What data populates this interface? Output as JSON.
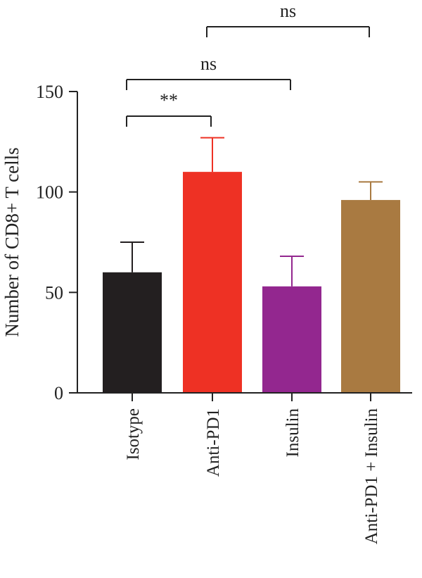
{
  "chart_data": {
    "type": "bar",
    "title": "",
    "xlabel": "",
    "ylabel": "Number of CD8+ T cells",
    "ylim": [
      0,
      150
    ],
    "yticks": [
      0,
      50,
      100,
      150
    ],
    "categories": [
      "Isotype",
      "Anti-PD1",
      "Insulin",
      "Anti-PD1 + Insulin"
    ],
    "values": [
      60,
      110,
      53,
      96
    ],
    "errors": [
      15,
      17,
      15,
      9
    ],
    "colors": [
      "#231f20",
      "#ee3124",
      "#93278f",
      "#a97a41"
    ],
    "significance": [
      {
        "from": 0,
        "to": 1,
        "label": "**"
      },
      {
        "from": 0,
        "to": 2,
        "label": "ns"
      },
      {
        "from": 1,
        "to": 3,
        "label": "ns"
      }
    ]
  }
}
